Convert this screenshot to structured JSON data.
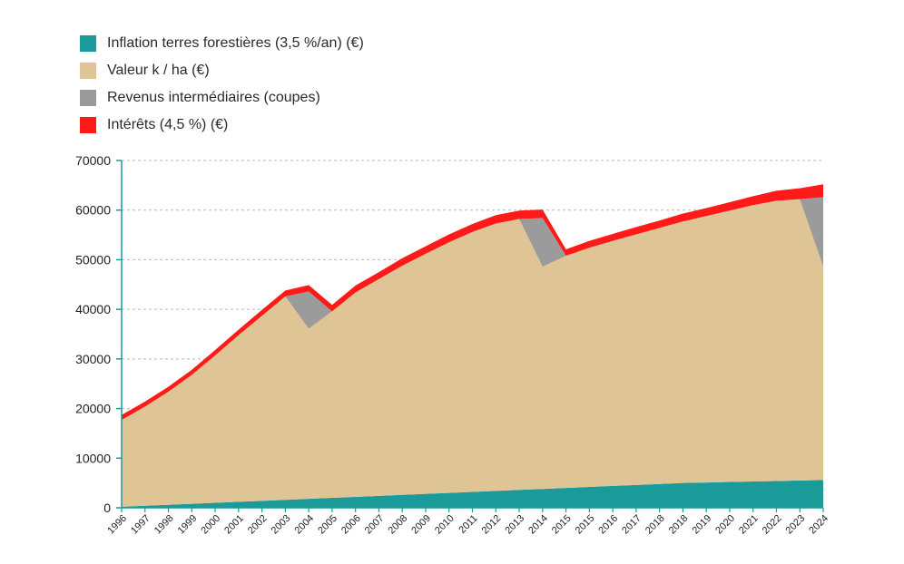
{
  "legend": {
    "items": [
      {
        "label": "Inflation terres forestières (3,5 %/an) (€)",
        "color": "#1a9a98"
      },
      {
        "label": "Valeur k / ha (€)",
        "color": "#dfc596"
      },
      {
        "label": "Revenus intermédiaires (coupes)",
        "color": "#9b9b9b"
      },
      {
        "label": "Intérêts (4,5 %) (€)",
        "color": "#ff1a1a"
      }
    ]
  },
  "chart_data": {
    "type": "area",
    "x": [
      "1996",
      "1997",
      "1998",
      "1999",
      "2000",
      "2001",
      "2002",
      "2003",
      "2004",
      "2005",
      "2006",
      "2007",
      "2008",
      "2009",
      "2010",
      "2011",
      "2012",
      "2013",
      "2014",
      "2015",
      "2015",
      "2016",
      "2017",
      "2018",
      "2018",
      "2019",
      "2020",
      "2021",
      "2022",
      "2023",
      "2024"
    ],
    "ylim": [
      0,
      70000
    ],
    "yticks": [
      0,
      10000,
      20000,
      30000,
      40000,
      50000,
      60000,
      70000
    ],
    "ytick_labels": [
      "0",
      "10000",
      "20000",
      "30000",
      "40000",
      "50000",
      "60000",
      "70000"
    ],
    "grid": true,
    "legend_position": "top-left",
    "series": [
      {
        "name": "Inflation terres forestières (3,5 %/an) (€)",
        "color": "#1a9a98",
        "values": [
          200,
          400,
          600,
          800,
          1000,
          1200,
          1400,
          1600,
          1800,
          2000,
          2200,
          2400,
          2600,
          2800,
          3000,
          3200,
          3400,
          3600,
          3800,
          4000,
          4200,
          4400,
          4600,
          4800,
          5000,
          5100,
          5200,
          5300,
          5400,
          5500,
          5600
        ]
      },
      {
        "name": "Valeur k / ha (€)",
        "color": "#dfc596",
        "values": [
          17500,
          20000,
          22800,
          26000,
          29700,
          33600,
          37300,
          41000,
          34300,
          37600,
          41200,
          43700,
          46200,
          48400,
          50500,
          52400,
          53900,
          54600,
          44800,
          46800,
          48200,
          49400,
          50500,
          51600,
          52700,
          53700,
          54700,
          55700,
          56500,
          56700,
          43000
        ]
      },
      {
        "name": "Revenus intermédiaires (coupes)",
        "color": "#9b9b9b",
        "values": [
          0,
          0,
          0,
          0,
          0,
          0,
          0,
          0,
          7500,
          0,
          0,
          0,
          0,
          0,
          0,
          0,
          0,
          0,
          9800,
          0,
          0,
          0,
          0,
          0,
          0,
          0,
          0,
          0,
          0,
          0,
          14000
        ]
      },
      {
        "name": "Intérêts (4,5 %) (€)",
        "color": "#ff1a1a",
        "values": [
          1000,
          1000,
          1000,
          1000,
          1100,
          1100,
          1200,
          1200,
          1300,
          1300,
          1400,
          1400,
          1500,
          1500,
          1600,
          1600,
          1700,
          1700,
          1700,
          1300,
          1400,
          1400,
          1500,
          1500,
          1600,
          1600,
          1700,
          1800,
          2000,
          2200,
          2600
        ]
      }
    ]
  }
}
